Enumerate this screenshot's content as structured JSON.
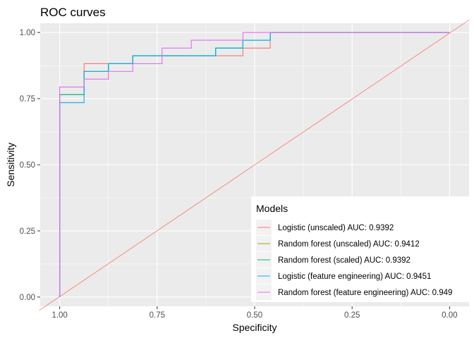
{
  "chart_data": {
    "type": "line",
    "title": "ROC curves",
    "xlabel": "Specificity",
    "ylabel": "Sensitivity",
    "x_reversed": true,
    "xlim": [
      1.05,
      -0.05
    ],
    "ylim": [
      -0.035,
      1.035
    ],
    "x_ticks": [
      {
        "v": 1.0,
        "label": "1.00"
      },
      {
        "v": 0.75,
        "label": "0.75"
      },
      {
        "v": 0.5,
        "label": "0.50"
      },
      {
        "v": 0.25,
        "label": "0.25"
      },
      {
        "v": 0.0,
        "label": "0.00"
      }
    ],
    "y_ticks": [
      {
        "v": 0.0,
        "label": "0.00"
      },
      {
        "v": 0.25,
        "label": "0.25"
      },
      {
        "v": 0.5,
        "label": "0.50"
      },
      {
        "v": 0.75,
        "label": "0.75"
      },
      {
        "v": 1.0,
        "label": "1.00"
      }
    ],
    "background": "#ebebeb",
    "grid": true,
    "legend": {
      "title": "Models",
      "position": "bottom-right"
    },
    "diagonal": {
      "x": [
        1.0,
        0.0
      ],
      "y": [
        0.0,
        1.0
      ],
      "color": "#f8766d"
    },
    "series": [
      {
        "name": "Logistic (unscaled) AUC: 0.9392",
        "color": "#f8766d",
        "x": [
          1.0,
          1.0,
          0.9375,
          0.9375,
          0.875,
          0.875,
          0.8125,
          0.8125,
          0.75,
          0.75,
          0.6875,
          0.6875,
          0.53,
          0.53,
          0.46,
          0.46,
          0.0
        ],
        "y": [
          0.0,
          0.765,
          0.765,
          0.882,
          0.882,
          0.882,
          0.882,
          0.912,
          0.912,
          0.912,
          0.912,
          0.912,
          0.912,
          0.941,
          0.941,
          1.0,
          1.0
        ]
      },
      {
        "name": "Random forest (unscaled) AUC: 0.9412",
        "color": "#a3a500",
        "x": [
          1.0,
          1.0,
          0.9375,
          0.9375,
          0.875,
          0.875,
          0.8125,
          0.8125,
          0.6,
          0.6,
          0.53,
          0.53,
          0.46,
          0.46,
          0.0
        ],
        "y": [
          0.0,
          0.765,
          0.765,
          0.853,
          0.853,
          0.882,
          0.882,
          0.912,
          0.912,
          0.941,
          0.941,
          0.971,
          0.971,
          1.0,
          1.0
        ]
      },
      {
        "name": "Random forest (scaled) AUC: 0.9392",
        "color": "#00bf7d",
        "x": [
          1.0,
          1.0,
          0.9375,
          0.9375,
          0.875,
          0.875,
          0.8125,
          0.8125,
          0.6,
          0.6,
          0.53,
          0.53,
          0.46,
          0.46,
          0.0
        ],
        "y": [
          0.0,
          0.765,
          0.765,
          0.853,
          0.853,
          0.882,
          0.882,
          0.912,
          0.912,
          0.941,
          0.941,
          0.971,
          0.971,
          1.0,
          1.0
        ]
      },
      {
        "name": "Logistic (feature engineering) AUC: 0.9451",
        "color": "#00b0f6",
        "x": [
          1.0,
          1.0,
          0.9375,
          0.9375,
          0.875,
          0.875,
          0.8125,
          0.8125,
          0.6,
          0.6,
          0.53,
          0.53,
          0.46,
          0.46,
          0.0
        ],
        "y": [
          0.0,
          0.735,
          0.735,
          0.853,
          0.853,
          0.882,
          0.882,
          0.912,
          0.912,
          0.941,
          0.941,
          0.971,
          0.971,
          1.0,
          1.0
        ]
      },
      {
        "name": "Random forest (feature engineering) AUC: 0.949",
        "color": "#e76bf3",
        "x": [
          1.0,
          1.0,
          0.9375,
          0.9375,
          0.875,
          0.875,
          0.8125,
          0.8125,
          0.7375,
          0.7375,
          0.6625,
          0.6625,
          0.53,
          0.53,
          0.0
        ],
        "y": [
          0.0,
          0.794,
          0.794,
          0.824,
          0.824,
          0.853,
          0.853,
          0.882,
          0.882,
          0.941,
          0.941,
          0.971,
          0.971,
          1.0,
          1.0
        ]
      }
    ]
  }
}
